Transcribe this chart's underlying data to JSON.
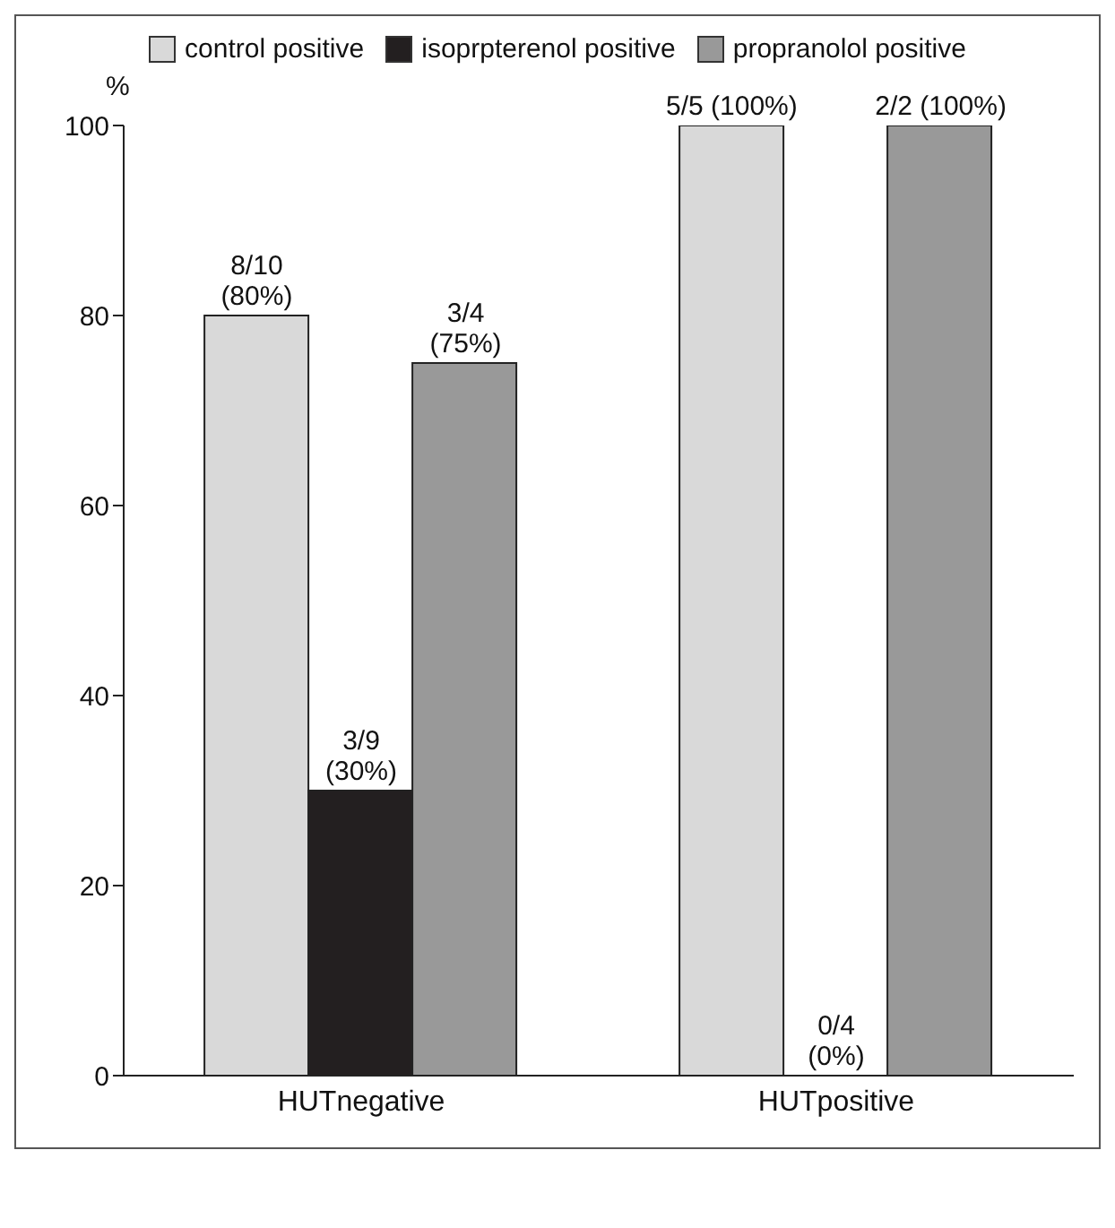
{
  "chart_data": {
    "type": "bar",
    "ylabel": "%",
    "categories": [
      "HUTnegative",
      "HUTpositive"
    ],
    "series": [
      {
        "name": "control positive",
        "color": "#d9d9d9",
        "values": [
          80,
          100
        ],
        "value_labels": [
          "8/10\n(80%)",
          "5/5 (100%)"
        ]
      },
      {
        "name": "isoprpterenol positive",
        "color": "#231f20",
        "values": [
          30,
          0
        ],
        "value_labels": [
          "3/9\n(30%)",
          "0/4\n(0%)"
        ]
      },
      {
        "name": "propranolol positive",
        "color": "#999999",
        "values": [
          75,
          100
        ],
        "value_labels": [
          "3/4\n(75%)",
          "2/2 (100%)"
        ]
      }
    ],
    "ylim": [
      0,
      100
    ],
    "yticks": [
      0,
      20,
      40,
      60,
      80,
      100
    ],
    "grid": false,
    "legend": "top"
  }
}
